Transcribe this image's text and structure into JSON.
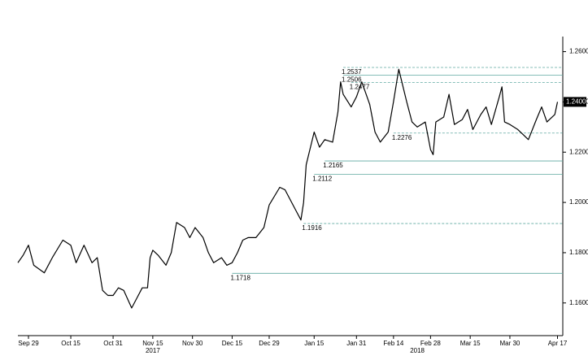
{
  "chart_data": {
    "type": "line",
    "x": [
      "2017-09-25",
      "2017-09-27",
      "2017-09-29",
      "2017-10-01",
      "2017-10-05",
      "2017-10-08",
      "2017-10-12",
      "2017-10-15",
      "2017-10-17",
      "2017-10-20",
      "2017-10-23",
      "2017-10-25",
      "2017-10-27",
      "2017-10-29",
      "2017-10-31",
      "2017-11-02",
      "2017-11-04",
      "2017-11-07",
      "2017-11-09",
      "2017-11-11",
      "2017-11-13",
      "2017-11-14",
      "2017-11-15",
      "2017-11-17",
      "2017-11-20",
      "2017-11-22",
      "2017-11-24",
      "2017-11-27",
      "2017-11-29",
      "2017-12-01",
      "2017-12-04",
      "2017-12-06",
      "2017-12-08",
      "2017-12-11",
      "2017-12-13",
      "2017-12-15",
      "2017-12-17",
      "2017-12-19",
      "2017-12-21",
      "2017-12-24",
      "2017-12-27",
      "2017-12-29",
      "2018-01-02",
      "2018-01-04",
      "2018-01-08",
      "2018-01-10",
      "2018-01-11",
      "2018-01-12",
      "2018-01-15",
      "2018-01-17",
      "2018-01-19",
      "2018-01-22",
      "2018-01-24",
      "2018-01-25",
      "2018-01-26",
      "2018-01-29",
      "2018-01-31",
      "2018-02-02",
      "2018-02-05",
      "2018-02-07",
      "2018-02-09",
      "2018-02-12",
      "2018-02-14",
      "2018-02-16",
      "2018-02-19",
      "2018-02-21",
      "2018-02-23",
      "2018-02-26",
      "2018-02-28",
      "2018-03-01",
      "2018-03-02",
      "2018-03-05",
      "2018-03-07",
      "2018-03-09",
      "2018-03-12",
      "2018-03-14",
      "2018-03-16",
      "2018-03-19",
      "2018-03-21",
      "2018-03-23",
      "2018-03-26",
      "2018-03-27",
      "2018-03-28",
      "2018-03-30",
      "2018-04-02",
      "2018-04-04",
      "2018-04-06",
      "2018-04-09",
      "2018-04-11",
      "2018-04-13",
      "2018-04-16",
      "2018-04-17"
    ],
    "series": [
      {
        "color": "#000000",
        "values": [
          1.176,
          1.179,
          1.183,
          1.175,
          1.172,
          1.178,
          1.185,
          1.183,
          1.176,
          1.183,
          1.176,
          1.178,
          1.165,
          1.163,
          1.163,
          1.166,
          1.165,
          1.158,
          1.162,
          1.166,
          1.166,
          1.178,
          1.181,
          1.179,
          1.175,
          1.18,
          1.192,
          1.19,
          1.186,
          1.19,
          1.186,
          1.18,
          1.176,
          1.178,
          1.175,
          1.176,
          1.18,
          1.185,
          1.186,
          1.186,
          1.19,
          1.199,
          1.206,
          1.205,
          1.197,
          1.193,
          1.2,
          1.215,
          1.228,
          1.222,
          1.225,
          1.224,
          1.236,
          1.248,
          1.243,
          1.238,
          1.242,
          1.248,
          1.239,
          1.228,
          1.224,
          1.228,
          1.24,
          1.253,
          1.24,
          1.232,
          1.23,
          1.232,
          1.221,
          1.219,
          1.232,
          1.234,
          1.243,
          1.231,
          1.233,
          1.237,
          1.229,
          1.235,
          1.238,
          1.231,
          1.242,
          1.246,
          1.232,
          1.231,
          1.229,
          1.227,
          1.225,
          1.233,
          1.238,
          1.232,
          1.235,
          1.24
        ]
      }
    ],
    "xlim": [
      "2017-09-25",
      "2018-04-19"
    ],
    "xticks": [
      {
        "value": "2017-09-29",
        "label": "Sep 29"
      },
      {
        "value": "2017-10-15",
        "label": "Oct 15"
      },
      {
        "value": "2017-10-31",
        "label": "Oct 31"
      },
      {
        "value": "2017-11-15",
        "label": "Nov 15"
      },
      {
        "value": "2017-11-30",
        "label": "Nov 30"
      },
      {
        "value": "2017-12-15",
        "label": "Dec 15"
      },
      {
        "value": "2017-12-29",
        "label": "Dec 29"
      },
      {
        "value": "2018-01-15",
        "label": "Jan 15"
      },
      {
        "value": "2018-01-31",
        "label": "Jan 31"
      },
      {
        "value": "2018-02-14",
        "label": "Feb 14"
      },
      {
        "value": "2018-02-28",
        "label": "Feb 28"
      },
      {
        "value": "2018-03-15",
        "label": "Mar 15"
      },
      {
        "value": "2018-03-30",
        "label": "Mar 30"
      },
      {
        "value": "2018-04-17",
        "label": "Apr 17"
      }
    ],
    "year_labels": [
      {
        "value": "2017-11-15",
        "label": "2017"
      },
      {
        "value": "2018-02-23",
        "label": "2018"
      }
    ],
    "ylim": [
      1.147,
      1.266
    ],
    "yticks": [
      {
        "value": 1.16,
        "label": "1.1600"
      },
      {
        "value": 1.18,
        "label": "1.1800"
      },
      {
        "value": 1.2,
        "label": "1.2000"
      },
      {
        "value": 1.22,
        "label": "1.2200"
      },
      {
        "value": 1.24,
        "label": "1.2400"
      },
      {
        "value": 1.26,
        "label": "1.2600"
      }
    ],
    "last_value": {
      "value": 1.24,
      "label": "1.2400"
    },
    "levels": [
      {
        "value": 1.2537,
        "label": "1.2537",
        "style": "dashed",
        "start": "2018-01-26"
      },
      {
        "value": 1.2506,
        "label": "1.2506",
        "style": "solid",
        "start": "2018-01-26"
      },
      {
        "value": 1.2477,
        "label": "1.2477",
        "style": "dashed",
        "start": "2018-01-29"
      },
      {
        "value": 1.2276,
        "label": "1.2276",
        "style": "dashed",
        "start": "2018-02-14"
      },
      {
        "value": 1.2165,
        "label": "1.2165",
        "style": "solid",
        "start": "2018-01-19"
      },
      {
        "value": 1.2112,
        "label": "1.2112",
        "style": "solid",
        "start": "2018-01-15"
      },
      {
        "value": 1.1916,
        "label": "1.1916",
        "style": "dashed",
        "start": "2018-01-11"
      },
      {
        "value": 1.1718,
        "label": "1.1718",
        "style": "solid",
        "start": "2017-12-15"
      }
    ]
  }
}
